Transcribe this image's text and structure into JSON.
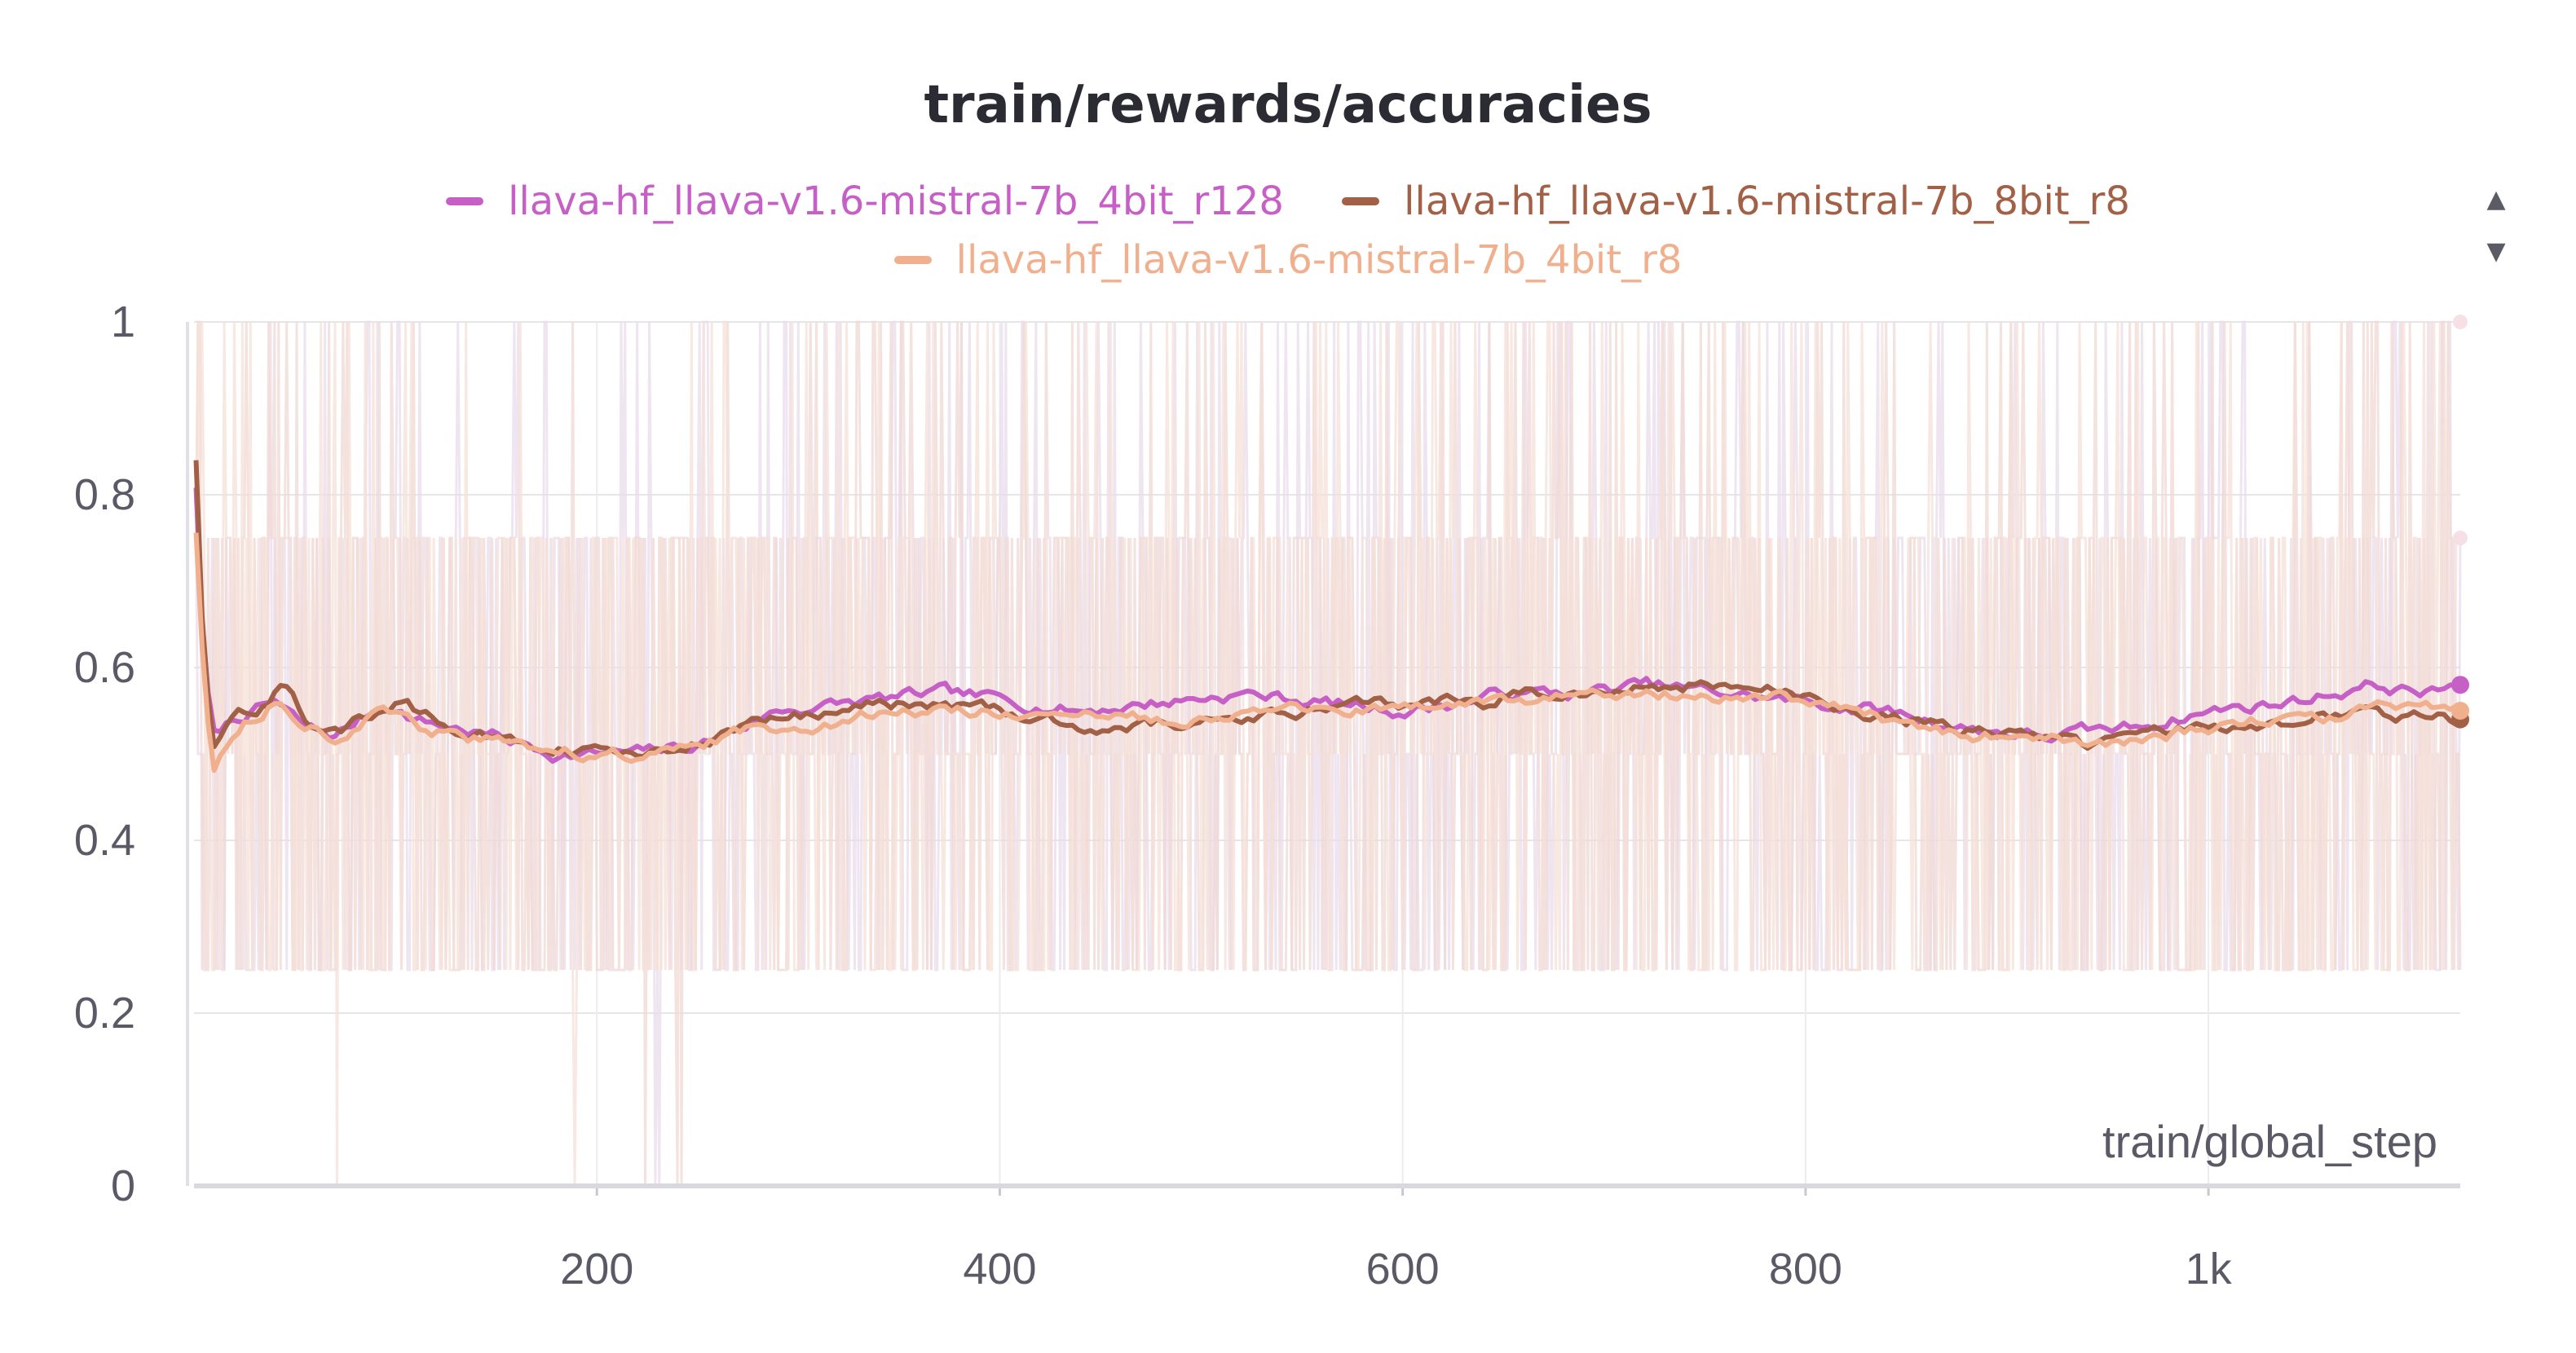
{
  "chart_data": {
    "type": "line",
    "title": "train/rewards/accuracies",
    "xlabel": "train/global_step",
    "ylabel": "",
    "xlim": [
      0,
      1125
    ],
    "ylim": [
      0,
      1
    ],
    "x_ticks": [
      200,
      400,
      600,
      800,
      1000
    ],
    "x_tick_labels": [
      "200",
      "400",
      "600",
      "800",
      "1k"
    ],
    "y_ticks": [
      0,
      0.2,
      0.4,
      0.6,
      0.8,
      1
    ],
    "y_tick_labels": [
      "0",
      "0.2",
      "0.4",
      "0.6",
      "0.8",
      "1"
    ],
    "grid": true,
    "legend_position": "top-center",
    "raw_value_levels": [
      0,
      0.25,
      0.5,
      0.75,
      1
    ],
    "series": [
      {
        "name": "llava-hf_llava-v1.6-mistral-7b_4bit_r128",
        "color": "#c65fc6",
        "raw_color": "#eadcec",
        "x": [
          0,
          5,
          10,
          20,
          40,
          55,
          70,
          95,
          110,
          130,
          150,
          180,
          220,
          250,
          290,
          330,
          370,
          410,
          440,
          480,
          520,
          560,
          600,
          630,
          650,
          690,
          720,
          760,
          800,
          840,
          880,
          920,
          960,
          1000,
          1040,
          1080,
          1110,
          1125
        ],
        "values": [
          0.86,
          0.6,
          0.52,
          0.54,
          0.56,
          0.53,
          0.52,
          0.56,
          0.54,
          0.53,
          0.52,
          0.5,
          0.5,
          0.51,
          0.55,
          0.56,
          0.57,
          0.56,
          0.55,
          0.56,
          0.57,
          0.56,
          0.55,
          0.56,
          0.57,
          0.57,
          0.58,
          0.57,
          0.56,
          0.55,
          0.53,
          0.52,
          0.53,
          0.55,
          0.56,
          0.58,
          0.57,
          0.58
        ]
      },
      {
        "name": "llava-hf_llava-v1.6-mistral-7b_8bit_r8",
        "color": "#a26046",
        "raw_color": "#f0d8d4",
        "x": [
          0,
          5,
          10,
          20,
          35,
          45,
          60,
          75,
          100,
          130,
          160,
          200,
          240,
          280,
          320,
          360,
          400,
          420,
          450,
          500,
          550,
          600,
          640,
          660,
          700,
          730,
          760,
          790,
          820,
          850,
          880,
          920,
          940,
          960,
          1000,
          1040,
          1080,
          1110,
          1125
        ],
        "values": [
          0.9,
          0.6,
          0.5,
          0.55,
          0.56,
          0.58,
          0.52,
          0.53,
          0.56,
          0.53,
          0.51,
          0.5,
          0.5,
          0.54,
          0.55,
          0.56,
          0.55,
          0.54,
          0.53,
          0.54,
          0.55,
          0.56,
          0.56,
          0.57,
          0.57,
          0.58,
          0.58,
          0.57,
          0.55,
          0.54,
          0.53,
          0.52,
          0.51,
          0.52,
          0.53,
          0.54,
          0.55,
          0.54,
          0.54
        ]
      },
      {
        "name": "llava-hf_llava-v1.6-mistral-7b_4bit_r8",
        "color": "#f0b08e",
        "raw_color": "#f6e0d8",
        "x": [
          0,
          5,
          10,
          20,
          40,
          55,
          70,
          95,
          110,
          130,
          160,
          200,
          240,
          280,
          320,
          360,
          400,
          440,
          480,
          520,
          560,
          600,
          640,
          660,
          700,
          730,
          770,
          800,
          840,
          880,
          920,
          960,
          1000,
          1040,
          1080,
          1110,
          1125
        ],
        "values": [
          0.8,
          0.58,
          0.48,
          0.53,
          0.56,
          0.54,
          0.52,
          0.55,
          0.53,
          0.52,
          0.51,
          0.5,
          0.5,
          0.53,
          0.54,
          0.55,
          0.55,
          0.54,
          0.54,
          0.55,
          0.55,
          0.55,
          0.56,
          0.56,
          0.57,
          0.57,
          0.57,
          0.56,
          0.54,
          0.52,
          0.52,
          0.51,
          0.53,
          0.54,
          0.55,
          0.55,
          0.55
        ]
      }
    ]
  },
  "legend": {
    "items": [
      {
        "label": "llava-hf_llava-v1.6-mistral-7b_4bit_r128",
        "color": "#c65fc6"
      },
      {
        "label": "llava-hf_llava-v1.6-mistral-7b_8bit_r8",
        "color": "#a26046"
      },
      {
        "label": "llava-hf_llava-v1.6-mistral-7b_4bit_r8",
        "color": "#f0b08e"
      }
    ]
  },
  "controls": {
    "scroll_up_icon": "triangle-up-icon",
    "scroll_down_icon": "triangle-down-icon"
  }
}
